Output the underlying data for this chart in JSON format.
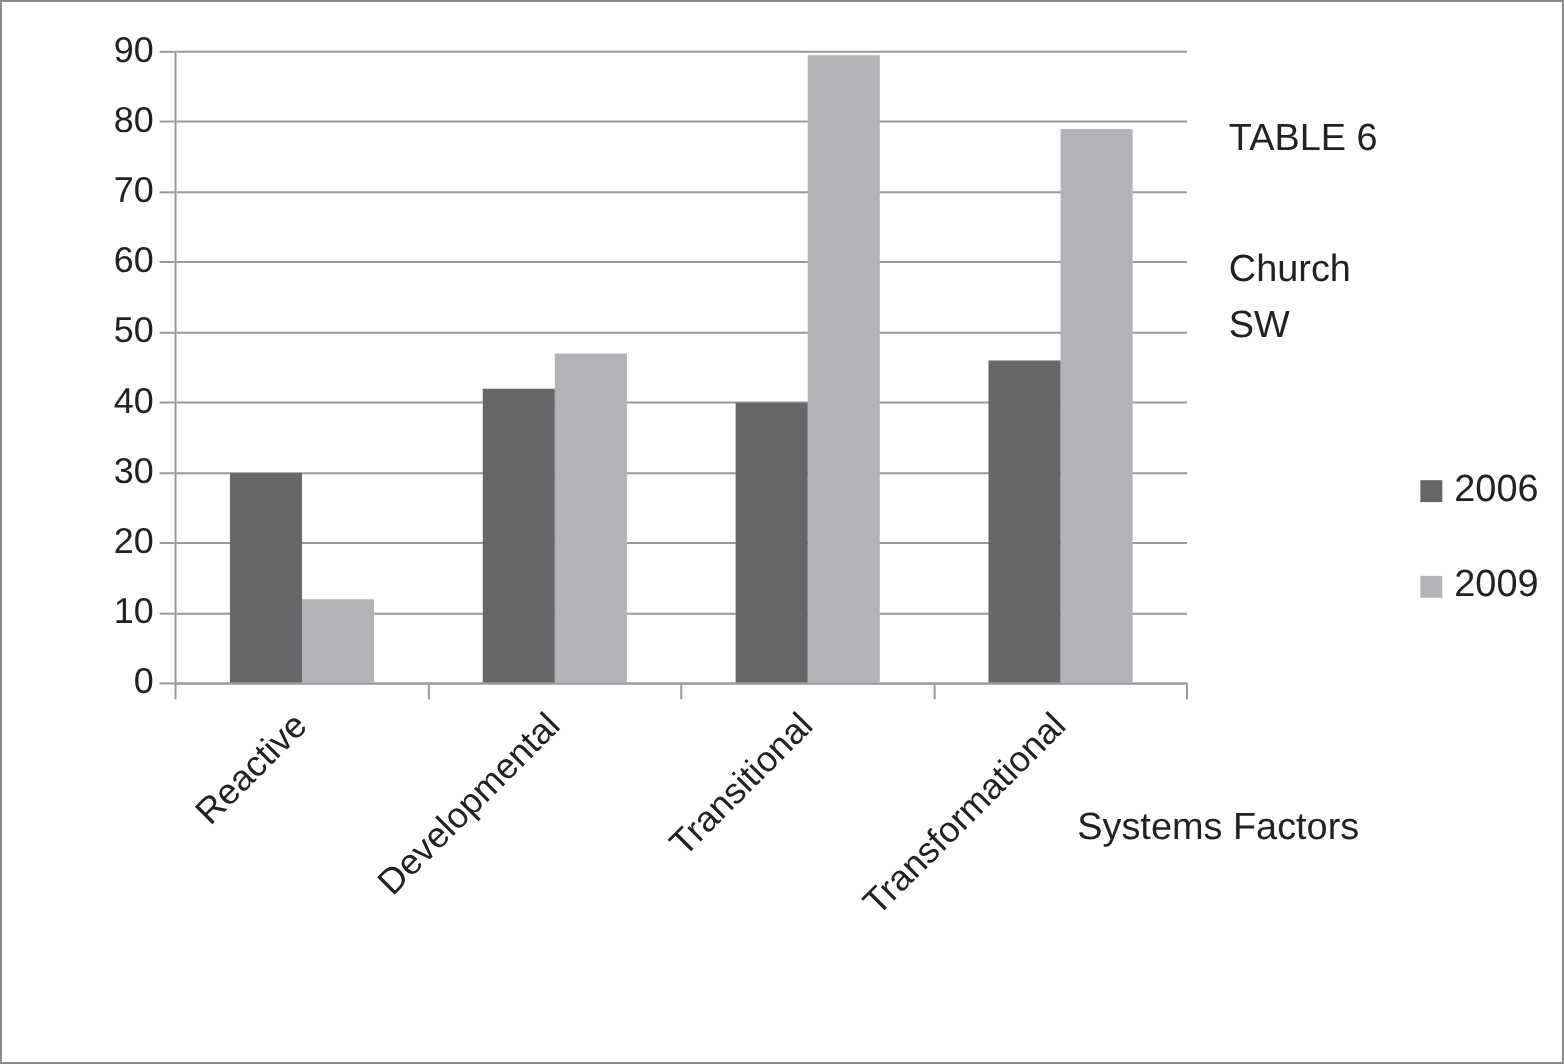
{
  "chart_data": {
    "type": "bar",
    "title": "TABLE 6",
    "subtitle": "Church SW",
    "xlabel": "Systems Factors",
    "categories": [
      "Reactive",
      "Developmental",
      "Transitional",
      "Transformational"
    ],
    "series": [
      {
        "name": "2006",
        "color": "#666668",
        "values": [
          30,
          42,
          40,
          46
        ]
      },
      {
        "name": "2009",
        "color": "#b2b3b6",
        "values": [
          12,
          47,
          89.5,
          79
        ]
      }
    ],
    "ylim": [
      0,
      90
    ],
    "yticks": [
      0,
      10,
      20,
      30,
      40,
      50,
      60,
      70,
      80,
      90
    ],
    "grid": "y",
    "legend": "right"
  }
}
